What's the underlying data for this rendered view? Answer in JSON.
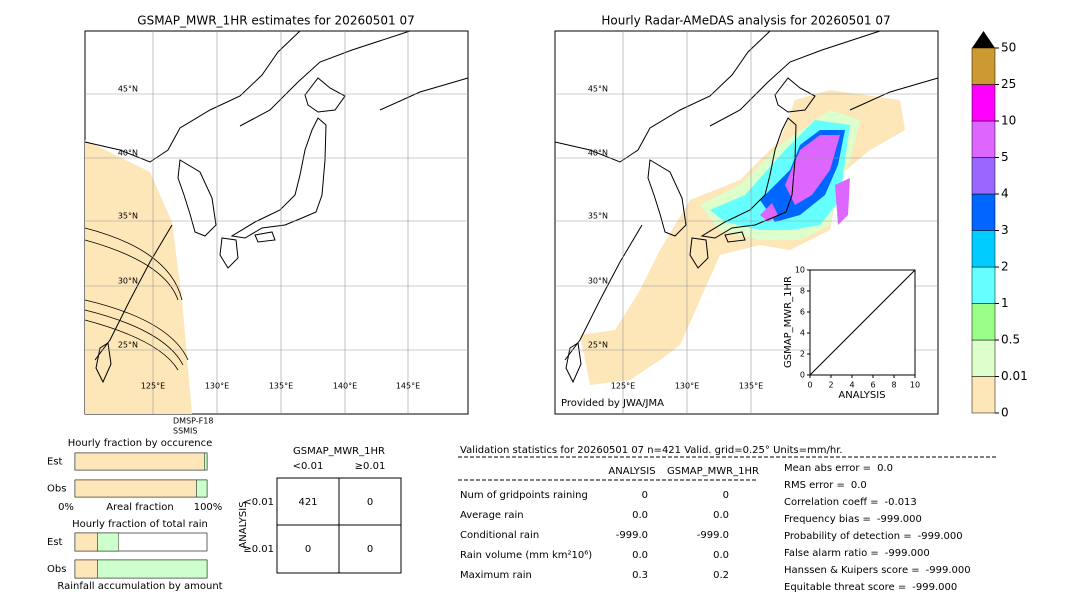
{
  "left_map": {
    "title": "GSMAP_MWR_1HR estimates for 20260501 07",
    "lat_labels": [
      "45°N",
      "40°N",
      "35°N",
      "30°N",
      "25°N"
    ],
    "lon_labels": [
      "125°E",
      "130°E",
      "135°E",
      "140°E",
      "145°E"
    ],
    "satellite": [
      "DMSP-F18",
      "SSMIS"
    ]
  },
  "right_map": {
    "title": "Hourly Radar-AMeDAS analysis for 20260501 07",
    "lat_labels": [
      "45°N",
      "40°N",
      "35°N",
      "30°N",
      "25°N"
    ],
    "lon_labels": [
      "125°E",
      "130°E",
      "135°E"
    ],
    "credit": "Provided by JWA/JMA"
  },
  "scatter_inset": {
    "xlabel": "ANALYSIS",
    "ylabel": "GSMAP_MWR_1HR",
    "xlim": [
      0,
      10
    ],
    "ylim": [
      0,
      10
    ],
    "xticks": [
      0,
      2,
      4,
      6,
      8,
      10
    ],
    "yticks": [
      0,
      2,
      4,
      6,
      8,
      10
    ]
  },
  "colorbar": {
    "ticks": [
      0,
      0.01,
      0.5,
      1,
      2,
      3,
      4,
      5,
      10,
      25,
      50
    ],
    "colors": [
      "#fde6b8",
      "#dcffcc",
      "#99ff88",
      "#66ffff",
      "#00ccff",
      "#0066ff",
      "#9966ff",
      "#dd66ff",
      "#ff00ff",
      "#cc9933"
    ],
    "extend_color": "#000000"
  },
  "occurrence": {
    "title": "Hourly fraction by occurence",
    "rows": [
      "Est",
      "Obs"
    ],
    "values": [
      [
        0.98,
        0.02
      ],
      [
        0.92,
        0.08
      ]
    ],
    "colors": [
      "#fde6b8",
      "#ccffcc"
    ],
    "axis_left": "0%",
    "axis_label": "Areal fraction",
    "axis_right": "100%"
  },
  "total_rain": {
    "title": "Hourly fraction of total rain",
    "rows": [
      "Est",
      "Obs"
    ],
    "values": [
      [
        0.17,
        0.16
      ],
      [
        0.17,
        0.83
      ]
    ],
    "colors": [
      "#fde6b8",
      "#ccffcc"
    ],
    "xlabel": "Rainfall accumulation by amount"
  },
  "contingency": {
    "title": "GSMAP_MWR_1HR",
    "col_headers": [
      "<0.01",
      "≥0.01"
    ],
    "row_axis": "ANALYSIS",
    "row_headers": [
      "<0.01",
      "≥0.01"
    ],
    "cells": [
      [
        "421",
        "0"
      ],
      [
        "0",
        "0"
      ]
    ]
  },
  "validation": {
    "header": "Validation statistics for 20260501 07  n=421 Valid. grid=0.25° Units=mm/hr.",
    "columns": [
      "ANALYSIS",
      "GSMAP_MWR_1HR"
    ],
    "rows": [
      {
        "label": "Num of gridpoints raining",
        "values": [
          "0",
          "0"
        ]
      },
      {
        "label": "Average rain",
        "values": [
          "0.0",
          "0.0"
        ]
      },
      {
        "label": "Conditional rain",
        "values": [
          "-999.0",
          "-999.0"
        ]
      },
      {
        "label": "Rain volume (mm km²10⁶)",
        "values": [
          "0.0",
          "0.0"
        ]
      },
      {
        "label": "Maximum rain",
        "values": [
          "0.3",
          "0.2"
        ]
      }
    ],
    "scores": [
      {
        "label": "Mean abs error =",
        "value": "0.0"
      },
      {
        "label": "RMS error =",
        "value": "0.0"
      },
      {
        "label": "Correlation coeff =",
        "value": "-0.013"
      },
      {
        "label": "Frequency bias =",
        "value": "-999.000"
      },
      {
        "label": "Probability of detection =",
        "value": "-999.000"
      },
      {
        "label": "False alarm ratio =",
        "value": "-999.000"
      },
      {
        "label": "Hanssen & Kuipers score =",
        "value": "-999.000"
      },
      {
        "label": "Equitable threat score =",
        "value": "-999.000"
      }
    ]
  }
}
